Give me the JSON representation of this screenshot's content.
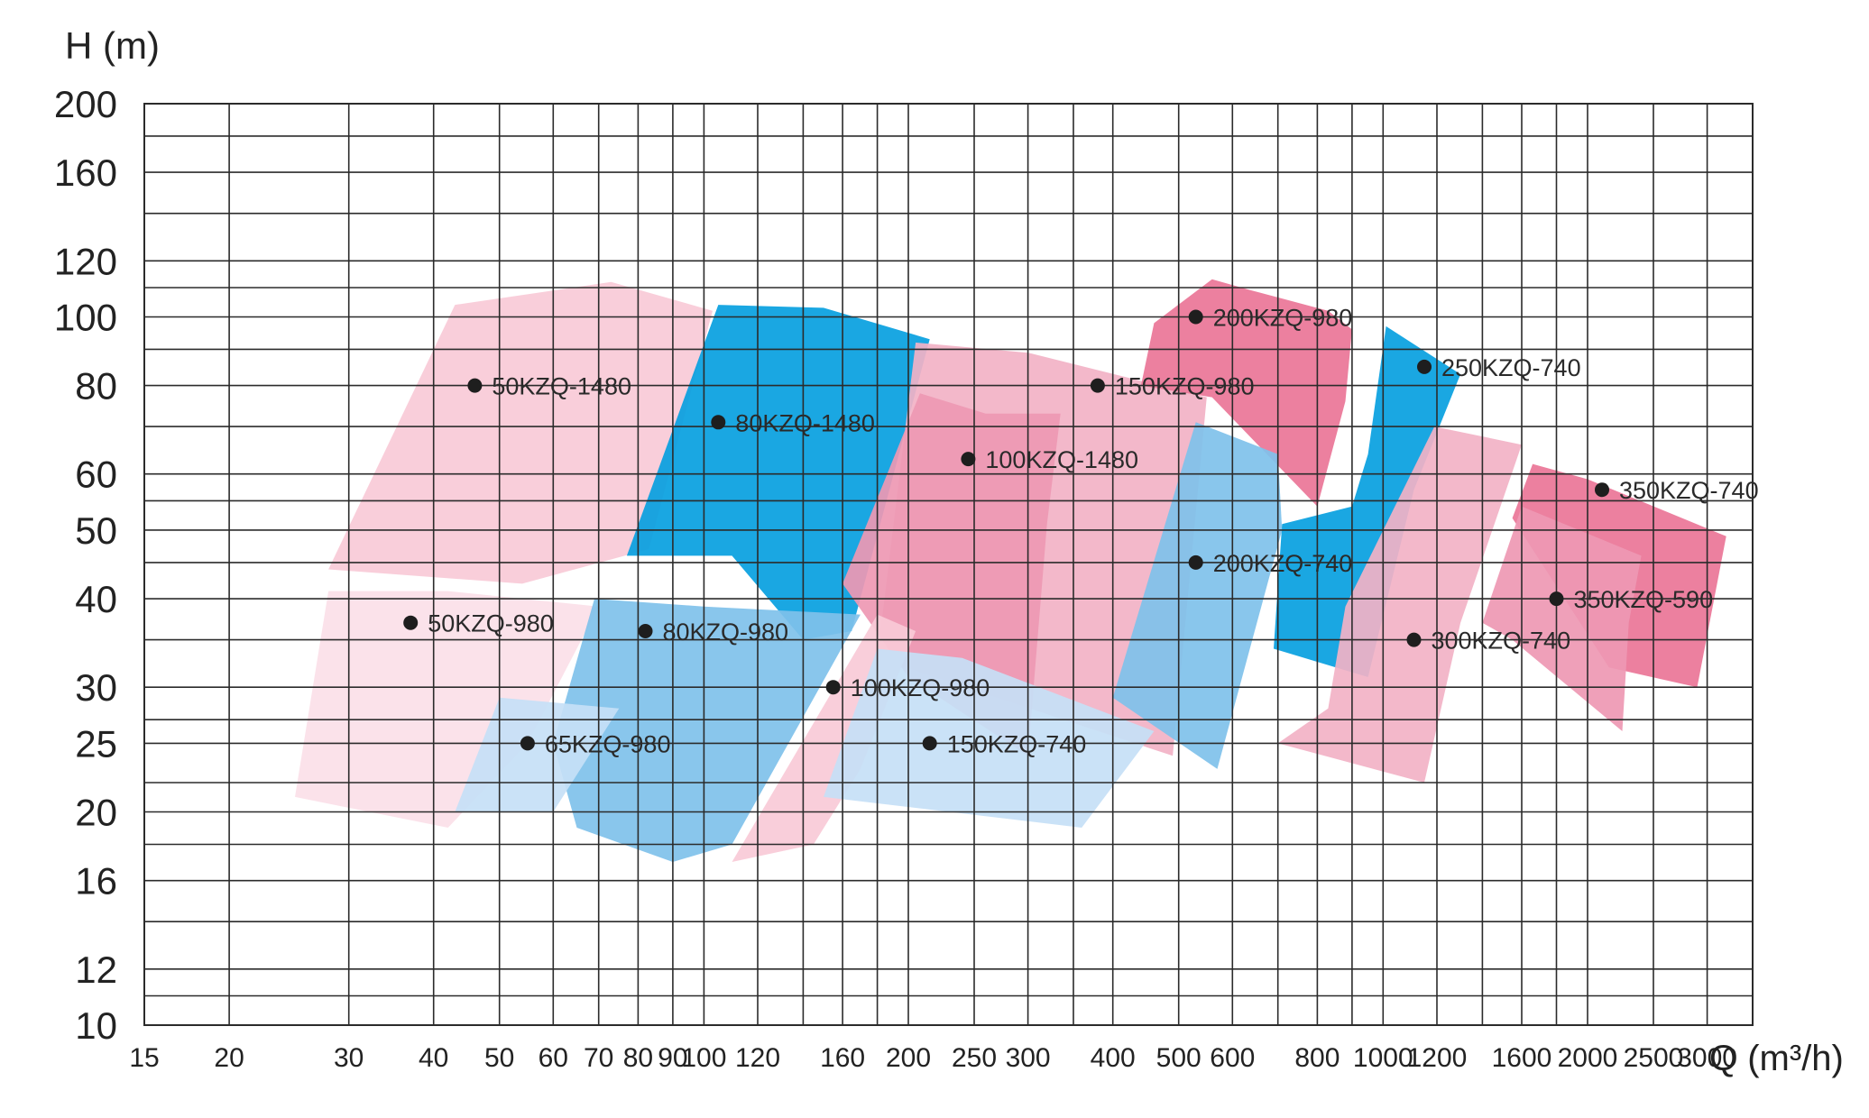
{
  "chart_data": {
    "type": "area",
    "title": "",
    "xlabel": "Q (m³/h)",
    "ylabel": "H (m)",
    "x_scale": "log",
    "y_scale": "log",
    "xlim": [
      15,
      3500
    ],
    "ylim": [
      10,
      200
    ],
    "grid": true,
    "x_gridlines": [
      15,
      20,
      30,
      40,
      50,
      60,
      70,
      80,
      90,
      100,
      120,
      140,
      160,
      180,
      200,
      250,
      300,
      350,
      400,
      500,
      600,
      700,
      800,
      900,
      1000,
      1200,
      1400,
      1600,
      1800,
      2000,
      2500,
      3000,
      3500
    ],
    "x_ticks": [
      {
        "value": 15,
        "label": "15"
      },
      {
        "value": 20,
        "label": "20"
      },
      {
        "value": 30,
        "label": "30"
      },
      {
        "value": 40,
        "label": "40"
      },
      {
        "value": 50,
        "label": "50"
      },
      {
        "value": 60,
        "label": "60"
      },
      {
        "value": 70,
        "label": "70"
      },
      {
        "value": 80,
        "label": "80"
      },
      {
        "value": 90,
        "label": "90"
      },
      {
        "value": 100,
        "label": "100"
      },
      {
        "value": 120,
        "label": "120"
      },
      {
        "value": 160,
        "label": "160"
      },
      {
        "value": 200,
        "label": "200"
      },
      {
        "value": 250,
        "label": "250"
      },
      {
        "value": 300,
        "label": "300"
      },
      {
        "value": 400,
        "label": "400"
      },
      {
        "value": 500,
        "label": "500"
      },
      {
        "value": 600,
        "label": "600"
      },
      {
        "value": 800,
        "label": "800"
      },
      {
        "value": 1000,
        "label": "1000"
      },
      {
        "value": 1200,
        "label": "1200"
      },
      {
        "value": 1600,
        "label": "1600"
      },
      {
        "value": 2000,
        "label": "2000"
      },
      {
        "value": 2500,
        "label": "2500"
      },
      {
        "value": 3000,
        "label": "3000"
      }
    ],
    "y_gridlines": [
      10,
      11,
      12,
      14,
      16,
      18,
      20,
      22,
      25,
      27,
      30,
      35,
      40,
      45,
      50,
      55,
      60,
      70,
      80,
      90,
      100,
      110,
      120,
      140,
      160,
      180,
      200
    ],
    "y_ticks": [
      {
        "value": 200,
        "label": "200"
      },
      {
        "value": 160,
        "label": "160"
      },
      {
        "value": 120,
        "label": "120"
      },
      {
        "value": 100,
        "label": "100"
      },
      {
        "value": 80,
        "label": "80"
      },
      {
        "value": 60,
        "label": "60"
      },
      {
        "value": 50,
        "label": "50"
      },
      {
        "value": 40,
        "label": "40"
      },
      {
        "value": 30,
        "label": "30"
      },
      {
        "value": 25,
        "label": "25"
      },
      {
        "value": 20,
        "label": "20"
      },
      {
        "value": 16,
        "label": "16"
      },
      {
        "value": 12,
        "label": "12"
      },
      {
        "value": 10,
        "label": "10"
      }
    ],
    "colors": {
      "very_light_pink": "#fbe0e8",
      "light_pink": "#f8cad7",
      "pink": "#f2b2c6",
      "medium_pink": "#ee98b3",
      "deep_pink": "#ea7597",
      "blue": "#069fdf",
      "light_blue": "#7fc1ea",
      "pale_blue": "#c6e0f6"
    },
    "regions": [
      {
        "name": "50KZQ-1480",
        "color": "light_pink",
        "point": [
          46,
          80
        ],
        "polygon": [
          [
            28,
            44
          ],
          [
            43,
            104
          ],
          [
            73,
            112
          ],
          [
            103,
            102
          ],
          [
            83,
            47
          ],
          [
            54,
            42
          ]
        ]
      },
      {
        "name": "80KZQ-1480",
        "color": "blue",
        "point": [
          105,
          71
        ],
        "polygon": [
          [
            77,
            46
          ],
          [
            105,
            104
          ],
          [
            150,
            103
          ],
          [
            215,
            93
          ],
          [
            165,
            36
          ],
          [
            140,
            35
          ],
          [
            110,
            46
          ]
        ]
      },
      {
        "name": "150KZQ-980",
        "color": "pink",
        "point": [
          380,
          80
        ],
        "polygon": [
          [
            205,
            92
          ],
          [
            300,
            89
          ],
          [
            550,
            77
          ],
          [
            490,
            24
          ],
          [
            180,
            33
          ]
        ]
      },
      {
        "name": "100KZQ-1480",
        "color": "medium_pink",
        "point": [
          245,
          63
        ],
        "polygon": [
          [
            208,
            78
          ],
          [
            260,
            73
          ],
          [
            335,
            73
          ],
          [
            320,
            51
          ],
          [
            300,
            24
          ],
          [
            200,
            31
          ],
          [
            160,
            42
          ]
        ]
      },
      {
        "name": "200KZQ-980",
        "color": "deep_pink",
        "point": [
          530,
          100
        ],
        "polygon": [
          [
            460,
            98
          ],
          [
            560,
            113
          ],
          [
            640,
            109
          ],
          [
            830,
            102
          ],
          [
            900,
            96
          ],
          [
            880,
            76
          ],
          [
            800,
            54
          ],
          [
            560,
            77
          ],
          [
            440,
            80
          ]
        ]
      },
      {
        "name": "250KZQ-740",
        "color": "blue",
        "point": [
          1150,
          85
        ],
        "polygon": [
          [
            1010,
            97
          ],
          [
            1300,
            83
          ],
          [
            1110,
            57
          ],
          [
            950,
            31
          ],
          [
            690,
            34
          ],
          [
            710,
            51
          ],
          [
            900,
            54
          ],
          [
            950,
            64
          ]
        ]
      },
      {
        "name": "200KZQ-740",
        "color": "light_blue",
        "point": [
          530,
          45
        ],
        "polygon": [
          [
            530,
            71
          ],
          [
            700,
            64
          ],
          [
            710,
            50
          ],
          [
            570,
            23
          ],
          [
            400,
            29
          ]
        ]
      },
      {
        "name": "300KZQ-740",
        "color": "pink",
        "point": [
          1110,
          35
        ],
        "polygon": [
          [
            1190,
            70
          ],
          [
            1600,
            66
          ],
          [
            1300,
            37
          ],
          [
            1150,
            22
          ],
          [
            700,
            25
          ],
          [
            830,
            28
          ],
          [
            880,
            39
          ]
        ]
      },
      {
        "name": "350KZQ-740",
        "color": "deep_pink",
        "point": [
          2100,
          57
        ],
        "polygon": [
          [
            1660,
            62
          ],
          [
            2000,
            59
          ],
          [
            3200,
            49
          ],
          [
            2900,
            30
          ],
          [
            2150,
            32
          ],
          [
            1550,
            52
          ]
        ]
      },
      {
        "name": "350KZQ-590",
        "color": "medium_pink",
        "point": [
          1800,
          40
        ],
        "polygon": [
          [
            1600,
            54
          ],
          [
            2400,
            46
          ],
          [
            2300,
            37
          ],
          [
            2250,
            26
          ],
          [
            1550,
            35
          ],
          [
            1400,
            37
          ]
        ]
      },
      {
        "name": "50KZQ-980",
        "color": "very_light_pink",
        "point": [
          37,
          37
        ],
        "polygon": [
          [
            28,
            41
          ],
          [
            42,
            41
          ],
          [
            70,
            39
          ],
          [
            55,
            25
          ],
          [
            42,
            19
          ],
          [
            25,
            21
          ]
        ]
      },
      {
        "name": "80KZQ-980",
        "color": "light_blue",
        "point": [
          82,
          36
        ],
        "polygon": [
          [
            69,
            40
          ],
          [
            100,
            39
          ],
          [
            170,
            38
          ],
          [
            110,
            18
          ],
          [
            90,
            17
          ],
          [
            65,
            19
          ],
          [
            60,
            25
          ]
        ]
      },
      {
        "name": "65KZQ-980",
        "color": "pale_blue",
        "point": [
          55,
          25
        ],
        "polygon": [
          [
            50,
            29
          ],
          [
            75,
            28
          ],
          [
            60,
            20
          ],
          [
            43,
            20
          ]
        ]
      },
      {
        "name": "100KZQ-980",
        "color": "light_pink",
        "point": [
          155,
          30
        ],
        "polygon": [
          [
            180,
            38
          ],
          [
            205,
            36
          ],
          [
            170,
            23
          ],
          [
            145,
            18
          ],
          [
            110,
            17
          ]
        ]
      },
      {
        "name": "150KZQ-740",
        "color": "pale_blue",
        "point": [
          215,
          25
        ],
        "polygon": [
          [
            180,
            34
          ],
          [
            240,
            33
          ],
          [
            460,
            26
          ],
          [
            360,
            19
          ],
          [
            150,
            21
          ]
        ]
      }
    ]
  }
}
